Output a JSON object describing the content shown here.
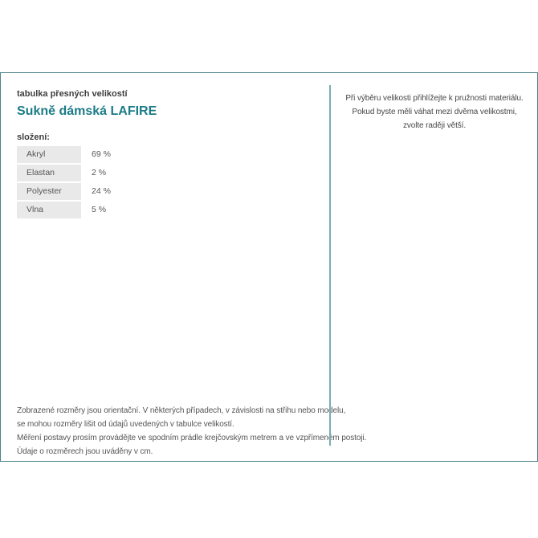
{
  "panel": {
    "small_title": "tabulka přesných velikostí",
    "product_title": "Sukně dámská LAFIRE",
    "composition_label": "složení:",
    "composition": {
      "rows": [
        {
          "material": "Akryl",
          "value": "69 %"
        },
        {
          "material": "Elastan",
          "value": "2 %"
        },
        {
          "material": "Polyester",
          "value": "24 %"
        },
        {
          "material": "Vlna",
          "value": "5 %"
        }
      ]
    },
    "size_note": {
      "line1": "Při výběru velikosti přihlížejte k pružnosti materiálu.",
      "line2": "Pokud byste měli váhat mezi dvěma velikostmi,",
      "line3": "zvolte raději větší."
    },
    "disclaimer": {
      "line1": "Zobrazené rozměry jsou orientační. V některých případech, v závislosti na střihu nebo modelu,",
      "line2": "se mohou rozměry lišit od údajů uvedených v tabulce velikostí.",
      "line3": "Měření postavy prosím provádějte ve spodním prádle krejčovským metrem a ve vzpřímeném postoji.",
      "line4": "Údaje o rozměrech jsou uváděny v cm."
    },
    "colors": {
      "border": "#4d828a",
      "divider": "#7cadb2",
      "accent": "#1b7b87",
      "cell_bg": "#e9e9e9",
      "heading": "#3d3d3d",
      "body": "#555555"
    }
  }
}
